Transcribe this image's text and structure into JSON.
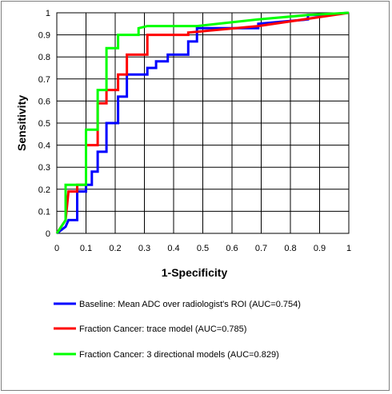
{
  "chart_data": {
    "type": "line",
    "xlabel": "1-Specificity",
    "ylabel": "Sensitivity",
    "xlim": [
      0,
      1
    ],
    "ylim": [
      0,
      1
    ],
    "x_ticks": [
      "0",
      "0.1",
      "0.2",
      "0.3",
      "0.4",
      "0.5",
      "0.6",
      "0.7",
      "0.8",
      "0.9",
      "1"
    ],
    "y_ticks": [
      "0",
      "0.1",
      "0.2",
      "0.3",
      "0.4",
      "0.5",
      "0.6",
      "0.7",
      "0.8",
      "0.9",
      "1"
    ],
    "grid": true,
    "legend_position": "bottom",
    "series": [
      {
        "name": "Baseline: Mean ADC over radiologist's ROI (AUC=0.754)",
        "color": "#0000ff",
        "points": [
          [
            0,
            0
          ],
          [
            0.03,
            0.03
          ],
          [
            0.04,
            0.06
          ],
          [
            0.07,
            0.06
          ],
          [
            0.07,
            0.19
          ],
          [
            0.1,
            0.19
          ],
          [
            0.1,
            0.22
          ],
          [
            0.12,
            0.22
          ],
          [
            0.12,
            0.28
          ],
          [
            0.14,
            0.28
          ],
          [
            0.14,
            0.37
          ],
          [
            0.17,
            0.37
          ],
          [
            0.17,
            0.5
          ],
          [
            0.21,
            0.5
          ],
          [
            0.21,
            0.62
          ],
          [
            0.24,
            0.62
          ],
          [
            0.24,
            0.72
          ],
          [
            0.31,
            0.72
          ],
          [
            0.31,
            0.75
          ],
          [
            0.34,
            0.75
          ],
          [
            0.34,
            0.78
          ],
          [
            0.38,
            0.78
          ],
          [
            0.38,
            0.81
          ],
          [
            0.45,
            0.81
          ],
          [
            0.45,
            0.87
          ],
          [
            0.48,
            0.87
          ],
          [
            0.48,
            0.93
          ],
          [
            0.69,
            0.93
          ],
          [
            0.69,
            0.95
          ],
          [
            0.86,
            0.97
          ],
          [
            0.86,
            0.99
          ],
          [
            0.9,
            0.99
          ],
          [
            1,
            1
          ]
        ]
      },
      {
        "name": "Fraction Cancer: trace model (AUC=0.785)",
        "color": "#ff0000",
        "points": [
          [
            0,
            0
          ],
          [
            0.03,
            0.06
          ],
          [
            0.04,
            0.19
          ],
          [
            0.07,
            0.19
          ],
          [
            0.07,
            0.22
          ],
          [
            0.1,
            0.22
          ],
          [
            0.1,
            0.4
          ],
          [
            0.14,
            0.4
          ],
          [
            0.14,
            0.59
          ],
          [
            0.17,
            0.59
          ],
          [
            0.17,
            0.65
          ],
          [
            0.21,
            0.65
          ],
          [
            0.21,
            0.72
          ],
          [
            0.24,
            0.72
          ],
          [
            0.24,
            0.81
          ],
          [
            0.31,
            0.81
          ],
          [
            0.31,
            0.9
          ],
          [
            0.45,
            0.9
          ],
          [
            0.45,
            0.91
          ],
          [
            0.69,
            0.94
          ],
          [
            1,
            1
          ]
        ]
      },
      {
        "name": "Fraction Cancer: 3 directional models (AUC=0.829)",
        "color": "#00ff00",
        "points": [
          [
            0,
            0
          ],
          [
            0.03,
            0.06
          ],
          [
            0.03,
            0.22
          ],
          [
            0.1,
            0.22
          ],
          [
            0.1,
            0.47
          ],
          [
            0.14,
            0.47
          ],
          [
            0.14,
            0.65
          ],
          [
            0.17,
            0.65
          ],
          [
            0.17,
            0.84
          ],
          [
            0.21,
            0.84
          ],
          [
            0.21,
            0.9
          ],
          [
            0.28,
            0.9
          ],
          [
            0.28,
            0.93
          ],
          [
            0.31,
            0.94
          ],
          [
            0.48,
            0.94
          ],
          [
            0.69,
            0.97
          ],
          [
            0.86,
            0.99
          ],
          [
            1,
            1
          ]
        ]
      }
    ]
  }
}
